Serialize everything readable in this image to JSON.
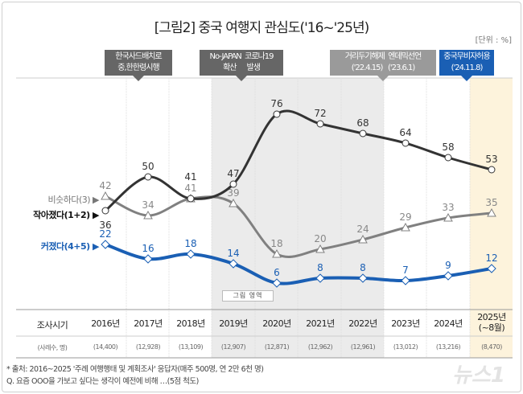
{
  "chart_data": {
    "type": "line",
    "title": "[그림2] 중국 여행지 관심도('16~'25년)",
    "unit": "[단위 : %]",
    "categories": [
      "2016년",
      "2017년",
      "2018년",
      "2019년",
      "2020년",
      "2021년",
      "2022년",
      "2023년",
      "2024년",
      "2025년\n(~8월)"
    ],
    "sample_sizes": [
      "(14,400)",
      "(12,928)",
      "(13,109)",
      "(12,907)",
      "(12,871)",
      "(12,962)",
      "(12,961)",
      "(13,012)",
      "(13,216)",
      "(8,470)"
    ],
    "row_header": "조사시기",
    "row_header_sub": "(사례수, 명)",
    "ylim": [
      0,
      80
    ],
    "series": [
      {
        "name": "작아졌다(1+2)",
        "color": "#333333",
        "marker": "circle",
        "values": [
          36,
          50,
          41,
          47,
          76,
          72,
          68,
          64,
          58,
          53
        ]
      },
      {
        "name": "비슷하다(3)",
        "color": "#808080",
        "marker": "triangle",
        "values": [
          42,
          34,
          41,
          39,
          18,
          20,
          24,
          29,
          33,
          35
        ]
      },
      {
        "name": "커졌다(4+5)",
        "color": "#1a5fb4",
        "marker": "diamond",
        "values": [
          22,
          16,
          18,
          14,
          6,
          8,
          8,
          7,
          9,
          12
        ]
      }
    ],
    "shaded_region_label": "그림 영역",
    "annotations": [
      {
        "line1": "한국사드배치로",
        "line2": "중,한한령시행",
        "color": "#666666"
      },
      {
        "line1": "No-JAPAN  코로나19",
        "line2": "확산      발생",
        "color": "#666666"
      },
      {
        "line1": "거리두기해제  엔데믹선언",
        "line2": "('22.4.15)   ('23.6.1)",
        "color": "#9a9a9a"
      },
      {
        "line1": "중국무비자허용",
        "line2": "('24.11.8)",
        "color": "#1a5fb4"
      }
    ]
  },
  "footer": {
    "source": "* 출처: 2016~2025 '주례 여행행태 및 계획조사' 응답자(매주 500명, 연 2만 6천 명)",
    "question": "Q. 요즘 OOO을 가보고 싶다는 생각이 예전에 비해 …(5점 척도)"
  },
  "watermark": "뉴스1"
}
